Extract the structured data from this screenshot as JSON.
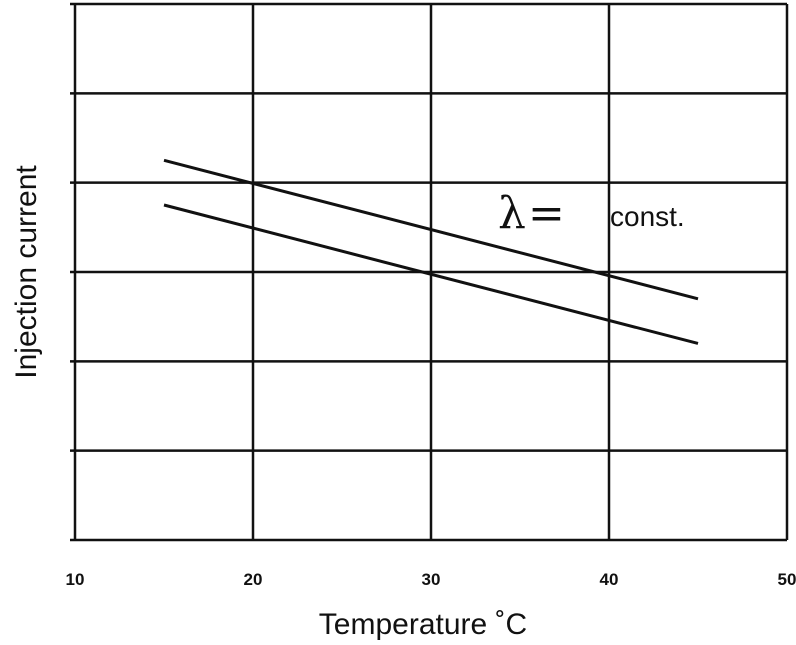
{
  "chart_data": {
    "type": "line",
    "title": "",
    "xlabel": "Temperature ˚C",
    "ylabel": "Injection current",
    "xlim": [
      10,
      50
    ],
    "ylim": [
      0,
      6
    ],
    "x_ticks": [
      10,
      20,
      30,
      40,
      50
    ],
    "x_tick_labels": [
      "10",
      "20",
      "30",
      "40",
      "50"
    ],
    "y_ticks": [
      0,
      1,
      2,
      3,
      4,
      5,
      6
    ],
    "y_tick_labels": [],
    "grid": true,
    "series": [
      {
        "x": [
          15,
          45
        ],
        "y": [
          4.25,
          2.7
        ]
      },
      {
        "x": [
          15,
          45
        ],
        "y": [
          3.75,
          2.2
        ]
      }
    ],
    "annotation": {
      "symbol": "λ",
      "equals": "=",
      "text": "const."
    },
    "colors": {
      "line": "#111111",
      "grid": "#111111",
      "background": "#ffffff"
    }
  }
}
